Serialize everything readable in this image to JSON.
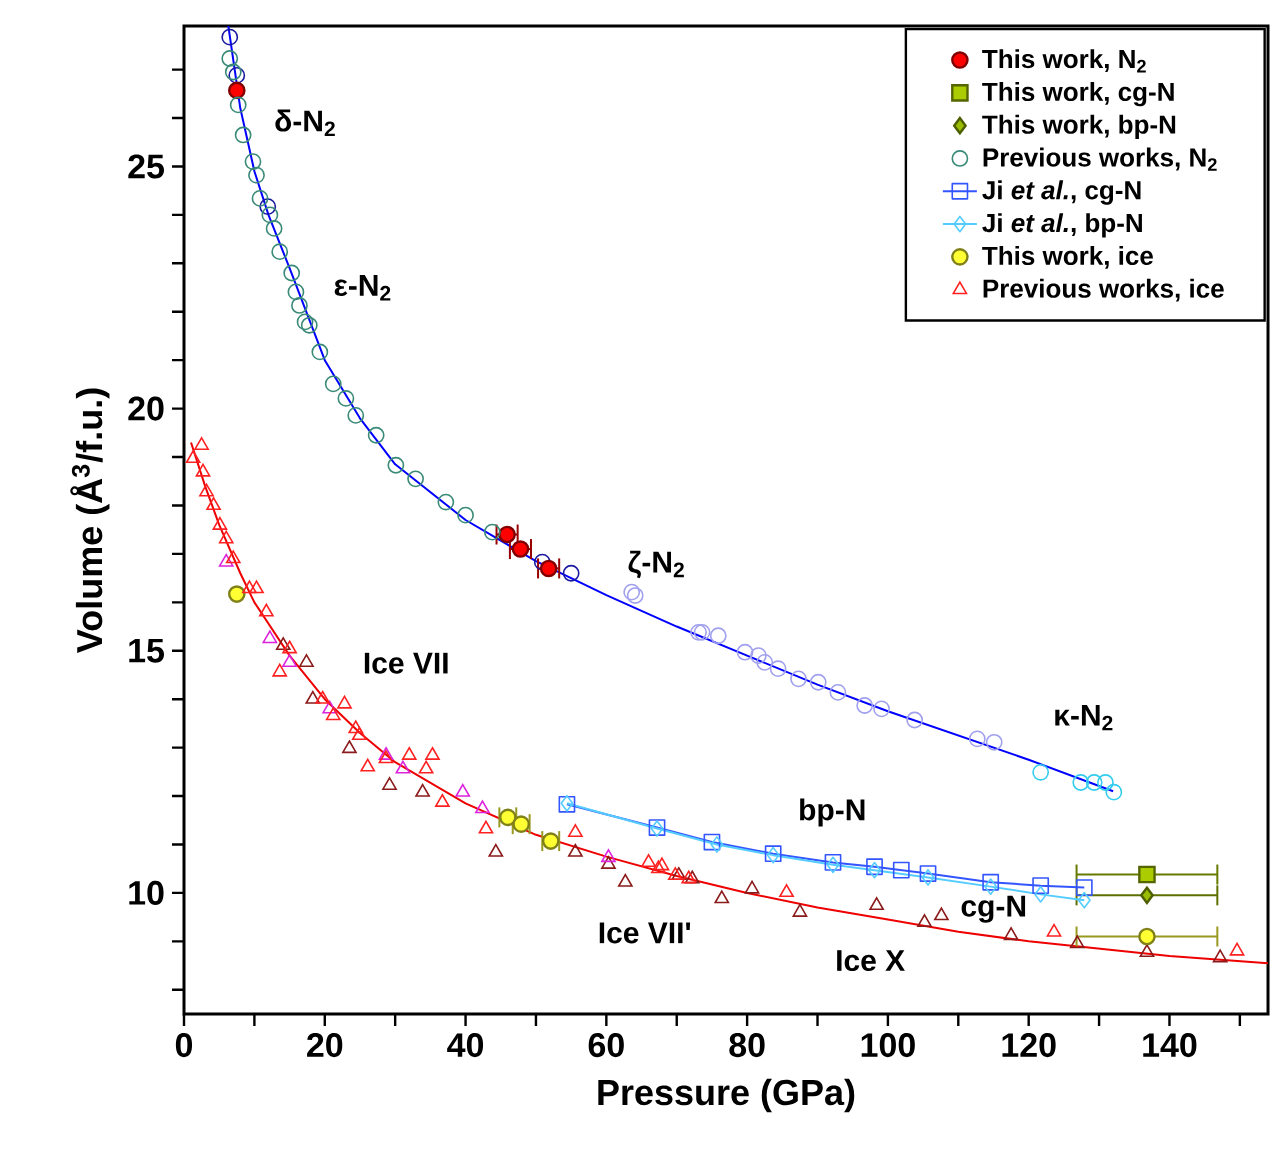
{
  "chart_data": {
    "type": "scatter",
    "xlabel": "Pressure (GPa)",
    "ylabel": "Volume (Å$^{3}$/f.u.)",
    "xlim": [
      0,
      154
    ],
    "ylim": [
      7.5,
      27.9
    ],
    "xticks": [
      0,
      {
        "value": 10,
        "label": null
      },
      20,
      {
        "value": 30,
        "label": null
      },
      40,
      {
        "value": 50,
        "label": null
      },
      60,
      {
        "value": 70,
        "label": null
      },
      80,
      {
        "value": 90,
        "label": null
      },
      100,
      {
        "value": 110,
        "label": null
      },
      120,
      {
        "value": 130,
        "label": null
      },
      140,
      {
        "value": 150,
        "label": null
      }
    ],
    "yticks": [
      {
        "value": 8,
        "label": null
      },
      {
        "value": 9,
        "label": null
      },
      10,
      {
        "value": 11,
        "label": null
      },
      {
        "value": 12,
        "label": null
      },
      {
        "value": 13,
        "label": null
      },
      {
        "value": 14,
        "label": null
      },
      15,
      {
        "value": 16,
        "label": null
      },
      {
        "value": 17,
        "label": null
      },
      {
        "value": 18,
        "label": null
      },
      {
        "value": 19,
        "label": null
      },
      20,
      {
        "value": 21,
        "label": null
      },
      {
        "value": 22,
        "label": null
      },
      {
        "value": 23,
        "label": null
      },
      {
        "value": 24,
        "label": null
      },
      25,
      {
        "value": 26,
        "label": null
      },
      {
        "value": 27,
        "label": null
      }
    ],
    "legend": "top right",
    "series": [
      {
        "type": "line",
        "color": "#0000ff",
        "marker": "none",
        "line_style": "solid",
        "x": [
          6.3,
          8,
          10,
          12,
          15,
          20,
          25,
          30,
          40,
          50,
          60,
          70,
          80,
          90,
          100,
          110,
          120,
          132
        ],
        "values": [
          27.9,
          26.2,
          24.9,
          24.0,
          22.9,
          21.0,
          19.8,
          18.85,
          17.7,
          16.85,
          16.15,
          15.5,
          14.9,
          14.3,
          13.75,
          13.25,
          12.75,
          12.1
        ]
      },
      {
        "type": "line",
        "color": "#ee0000",
        "marker": "none",
        "line_style": "solid",
        "x": [
          1,
          3,
          5,
          8,
          10,
          15,
          20,
          25,
          30,
          40,
          50,
          60,
          70,
          80,
          90,
          100,
          110,
          120,
          130,
          140,
          154
        ],
        "values": [
          19.3,
          18.4,
          17.6,
          16.6,
          16.0,
          14.9,
          14.0,
          13.3,
          12.7,
          11.85,
          11.2,
          10.75,
          10.35,
          10.0,
          9.7,
          9.45,
          9.2,
          9.0,
          8.85,
          8.7,
          8.55
        ]
      },
      {
        "color": "#1a1aa0",
        "marker": "circle",
        "x": [
          6.5,
          7.5,
          11.9,
          50.9,
          55.0
        ],
        "values": [
          27.67,
          26.88,
          24.17,
          16.83,
          16.6
        ]
      },
      {
        "color": "#a0a0ee",
        "marker": "circle",
        "x": [
          63.6,
          64.1,
          73.1,
          73.6,
          75.9,
          79.7,
          81.6,
          82.5,
          84.4,
          87.3,
          90.1,
          92.9,
          96.7,
          99.1,
          103.8,
          112.7,
          115.1
        ],
        "values": [
          16.21,
          16.14,
          15.38,
          15.38,
          15.31,
          14.97,
          14.9,
          14.76,
          14.63,
          14.42,
          14.35,
          14.14,
          13.87,
          13.8,
          13.57,
          13.18,
          13.11
        ]
      },
      {
        "color": "#33ccee",
        "marker": "circle",
        "x": [
          121.7,
          127.4,
          129.3,
          130.9,
          132.1
        ],
        "values": [
          12.49,
          12.28,
          12.28,
          12.28,
          12.08
        ]
      },
      {
        "color": "#8b1a1a",
        "marker": "triangle",
        "x": [
          14.1,
          17.4,
          18.3,
          23.5,
          29.2,
          33.9,
          44.3,
          55.6,
          60.3,
          62.7,
          70.3,
          72.2,
          76.4,
          80.7,
          87.5,
          98.4,
          105.2,
          107.6,
          117.5,
          126.9,
          136.8,
          147.2
        ],
        "values": [
          15.11,
          14.76,
          14.0,
          12.98,
          12.22,
          12.08,
          10.84,
          10.84,
          10.59,
          10.22,
          10.36,
          10.29,
          9.88,
          10.08,
          9.6,
          9.74,
          9.39,
          9.53,
          9.12,
          8.95,
          8.77,
          8.66
        ]
      },
      {
        "color": "#dd22dd",
        "marker": "triangle",
        "x": [
          6.0,
          12.2,
          15.0,
          20.7,
          28.7,
          31.1,
          39.6,
          42.4,
          60.3
        ],
        "values": [
          16.83,
          15.25,
          14.76,
          13.8,
          12.84,
          12.56,
          12.08,
          11.74,
          10.73
        ]
      },
      {
        "name": "This work, N$_{2}$",
        "color": "#ff0000",
        "marker": "circle",
        "x": [
          7.5,
          45.9,
          47.8,
          51.8
        ],
        "values": [
          26.57,
          17.4,
          17.1,
          16.7
        ],
        "xerrors": [
          null,
          1.5,
          1.5,
          1.5
        ]
      },
      {
        "name": "This work, cg-N",
        "color": "#aacc00",
        "marker": "square",
        "x": [
          136.8
        ],
        "values": [
          10.38
        ],
        "xerrors": [
          10
        ]
      },
      {
        "name": "This work, bp-N",
        "color": "#99bb00",
        "marker": "diamond",
        "x": [
          136.8
        ],
        "values": [
          9.95
        ],
        "xerrors": [
          10
        ]
      },
      {
        "name": "Previous works, N$_{2}$",
        "color": "#3a8a78",
        "marker": "circle",
        "x": [
          6.5,
          7.0,
          7.7,
          8.4,
          9.8,
          10.3,
          10.8,
          12.2,
          12.8,
          13.6,
          15.3,
          15.9,
          16.4,
          17.2,
          17.8,
          19.3,
          21.2,
          23.0,
          24.4,
          27.3,
          30.1,
          32.9,
          37.2,
          40.0,
          43.8
        ],
        "values": [
          27.23,
          26.95,
          26.27,
          25.65,
          25.1,
          24.82,
          24.34,
          24.0,
          23.72,
          23.24,
          22.8,
          22.41,
          22.13,
          21.79,
          21.72,
          21.17,
          20.51,
          20.21,
          19.86,
          19.45,
          18.83,
          18.55,
          18.07,
          17.8,
          17.45
        ]
      },
      {
        "type": "line",
        "name": "Ji *et al.*, cg-N",
        "color": "#3355ff",
        "marker": "square",
        "line_style": "solid",
        "x": [
          54.4,
          67.2,
          75.0,
          83.7,
          92.2,
          98.1,
          101.9,
          105.7,
          114.6,
          121.7,
          127.9
        ],
        "values": [
          11.83,
          11.35,
          11.05,
          10.81,
          10.63,
          10.54,
          10.47,
          10.4,
          10.22,
          10.15,
          10.11
        ]
      },
      {
        "type": "line",
        "name": "Ji *et al.*, bp-N",
        "color": "#55ccff",
        "marker": "diamond",
        "line_style": "solid",
        "x": [
          54.4,
          67.2,
          75.7,
          83.7,
          92.2,
          98.1,
          105.7,
          114.6,
          121.7,
          127.9
        ],
        "values": [
          11.85,
          11.33,
          11.0,
          10.78,
          10.58,
          10.47,
          10.32,
          10.13,
          9.97,
          9.85
        ]
      },
      {
        "name": "This work, ice",
        "color": "#ffff33",
        "marker": "circle",
        "x": [
          7.5,
          46.0,
          47.9,
          52.1,
          136.8
        ],
        "values": [
          16.17,
          11.56,
          11.42,
          11.07,
          9.1
        ],
        "xerrors": [
          null,
          1.2,
          1.2,
          1.2,
          10
        ]
      },
      {
        "name": "Previous works, ice",
        "color": "#ff2020",
        "marker": "triangle",
        "x": [
          1.3,
          2.5,
          2.7,
          3.2,
          4.2,
          5.1,
          6.0,
          7.0,
          9.3,
          10.3,
          11.7,
          13.6,
          15.0,
          19.7,
          21.2,
          22.8,
          24.4,
          24.9,
          26.1,
          28.7,
          32.0,
          34.4,
          35.3,
          36.7,
          42.9,
          55.6,
          66.0,
          67.4,
          67.9,
          69.8,
          71.7,
          85.6,
          123.6,
          149.6
        ],
        "values": [
          18.97,
          19.24,
          18.69,
          18.28,
          18.0,
          17.59,
          17.31,
          16.9,
          16.28,
          16.28,
          15.8,
          14.56,
          15.04,
          14.0,
          13.66,
          13.9,
          13.39,
          13.25,
          12.6,
          12.77,
          12.84,
          12.56,
          12.84,
          11.87,
          11.32,
          11.25,
          10.63,
          10.5,
          10.56,
          10.36,
          10.29,
          10.01,
          9.19,
          8.8
        ]
      }
    ],
    "annotations": [
      "δ-N$_{2}$",
      "ε-N$_{2}$",
      "ζ-N$_{2}$",
      "κ-N$_{2}$",
      "Ice VII",
      "bp-N",
      "cg-N",
      "Ice VII'",
      "Ice X"
    ]
  }
}
